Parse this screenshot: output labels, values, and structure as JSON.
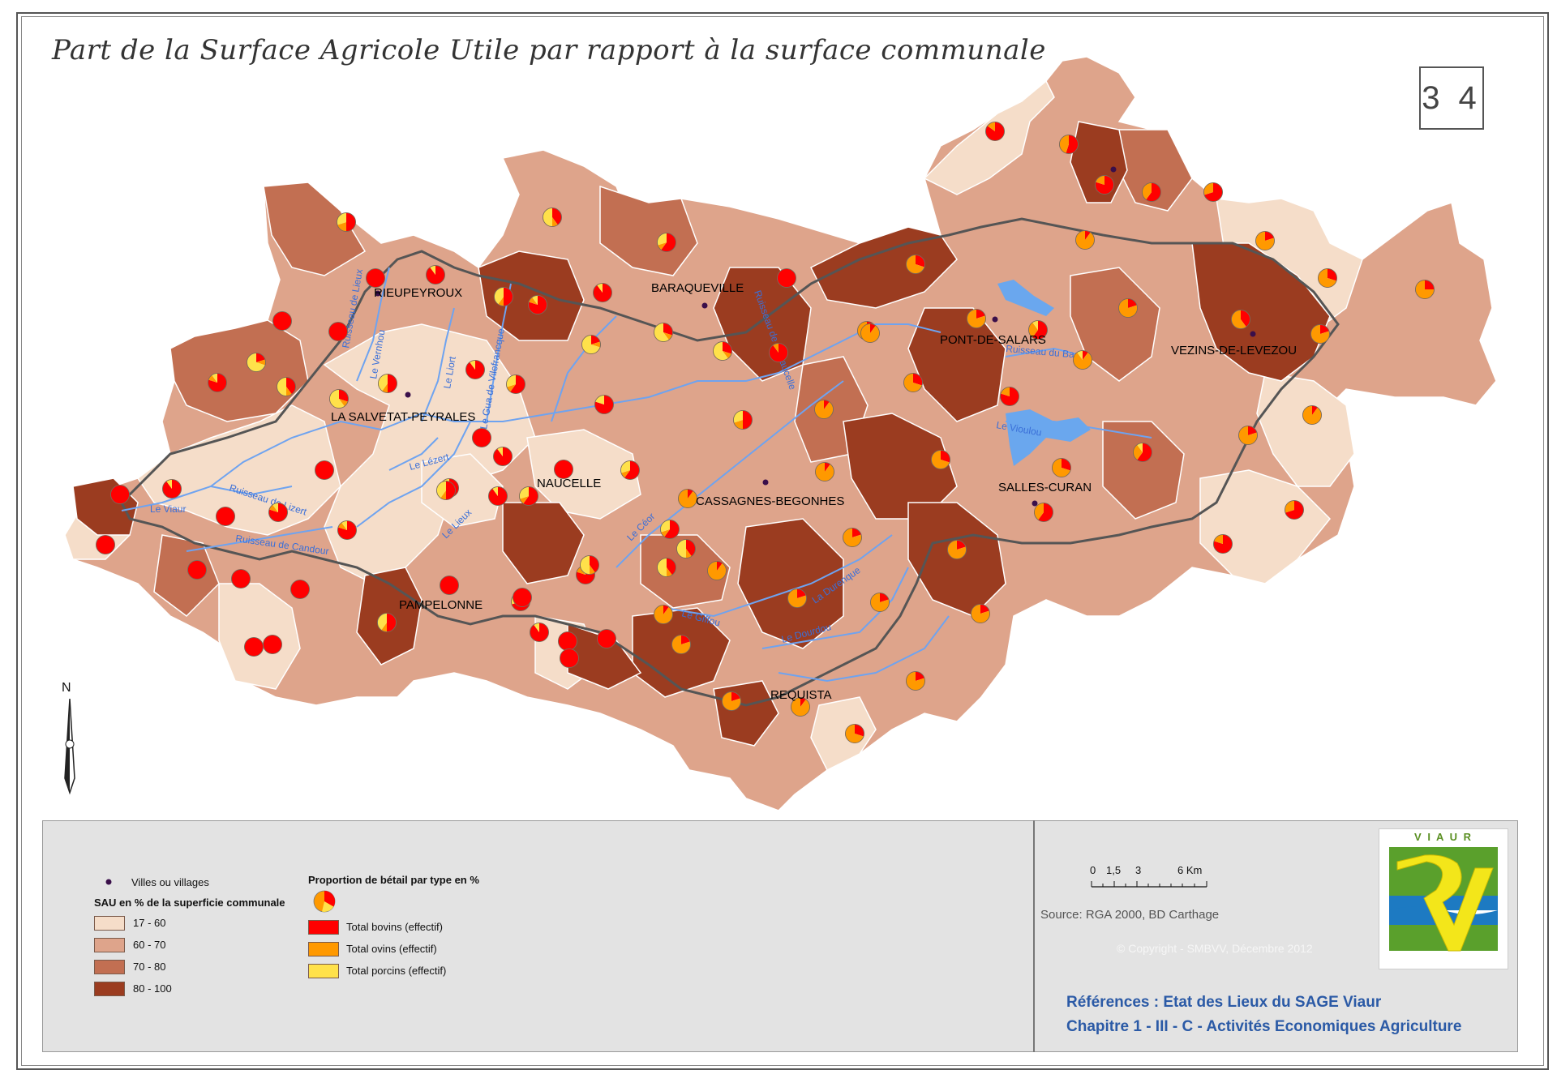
{
  "title": "Part de la Surface Agricole Utile par rapport à la surface communale",
  "page_number": "3 4",
  "north_label": "N",
  "towns": [
    "RIEUPEYROUX",
    "BARAQUEVILLE",
    "PONT-DE-SALARS",
    "VEZINS-DE-LEVEZOU",
    "LA SALVETAT-PEYRALES",
    "NAUCELLE",
    "CASSAGNES-BEGONHES",
    "SALLES-CURAN",
    "PAMPELONNE",
    "REQUISTA"
  ],
  "rivers": [
    "Le Viaur",
    "Ruisseau de Lizert",
    "Ruisseau de Candour",
    "Le Vernhou",
    "Ruisseau de Lieux",
    "Le Liort",
    "Le Lézert",
    "Le Lieux",
    "Le Céor",
    "Le Giffou",
    "Le Dourdou",
    "La Durenque",
    "Ruisseau du Bage",
    "Le Vioulou",
    "Ruisseau de la Naucelle",
    "Le Gua de Vilefrancque"
  ],
  "colors": {
    "class1": "#f5ddc9",
    "class2": "#dea48b",
    "class3": "#c26f52",
    "class4": "#9b3c20",
    "border": "#555555",
    "river": "#6ea3f0",
    "lake": "#6aa7ee",
    "bovins": "#ff0000",
    "ovins": "#ff9900",
    "porcins": "#ffe14a",
    "village": "#3a0f4a"
  },
  "legend": {
    "villages_label": "Villes ou villages",
    "sau_title": "SAU en % de la superficie communale",
    "sau_classes": [
      {
        "label": "17 - 60",
        "color": "#f5ddc9"
      },
      {
        "label": "60 - 70",
        "color": "#dea48b"
      },
      {
        "label": "70 - 80",
        "color": "#c26f52"
      },
      {
        "label": "80 - 100",
        "color": "#9b3c20"
      }
    ],
    "livestock_title": "Proportion de bétail par type en %",
    "livestock": [
      {
        "label": "Total bovins (effectif)",
        "color": "#ff0000"
      },
      {
        "label": "Total ovins (effectif)",
        "color": "#ff9900"
      },
      {
        "label": "Total porcins (effectif)",
        "color": "#ffe14a"
      }
    ]
  },
  "scale": {
    "ticks": [
      "0",
      "1,5",
      "3",
      "6 Km"
    ]
  },
  "source": "Source: RGA 2000, BD Carthage",
  "copyright": "© Copyright - SMBVV, Décembre 2012",
  "logo_text": "V I A U R",
  "references": {
    "line1": "Références : Etat des Lieux du SAGE Viaur",
    "line2": "Chapitre 1 - III - C - Activités Economiques Agriculture"
  }
}
